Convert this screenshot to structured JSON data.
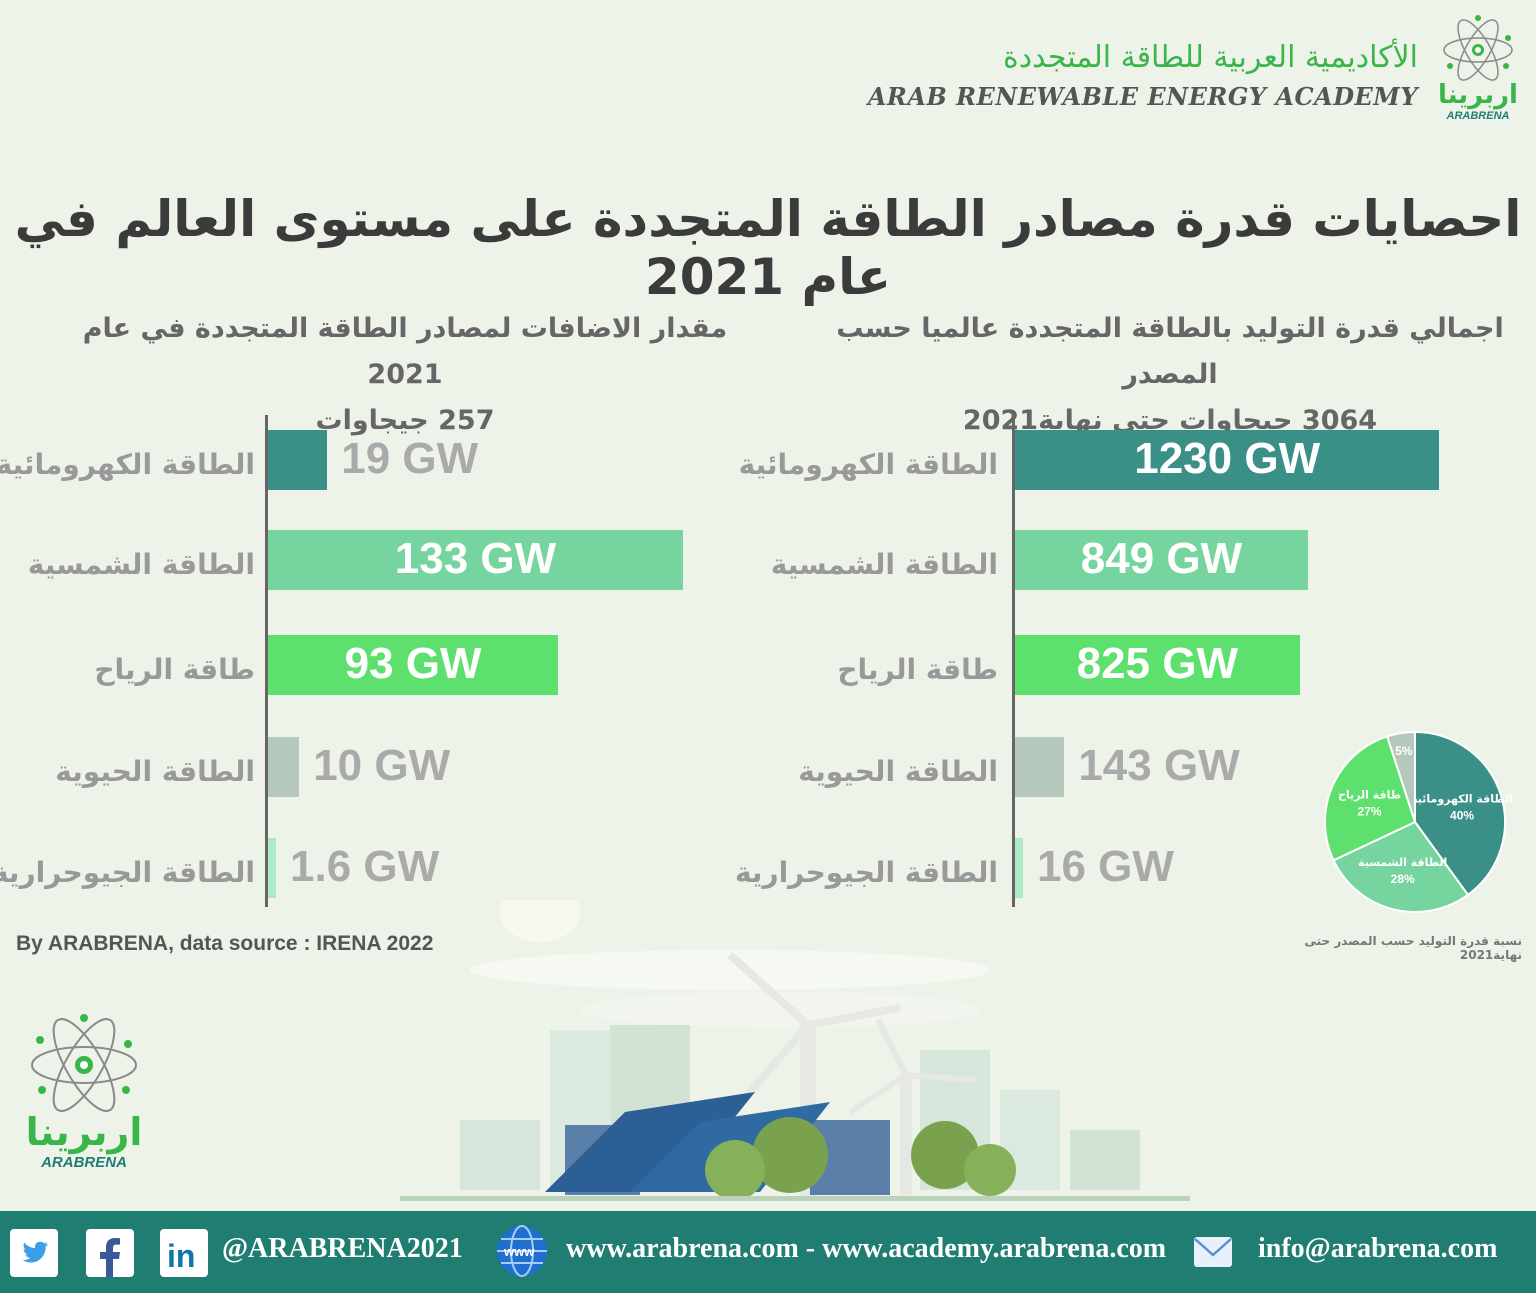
{
  "header": {
    "academy_ar": "الأكاديمية العربية للطاقة المتجددة",
    "academy_en": "ARAB RENEWABLE ENERGY ACADEMY",
    "logo_ar": "اربرينا",
    "logo_en": "ARABRENA"
  },
  "title": "احصايات قدرة مصادر الطاقة المتجددة على مستوى العالم في عام 2021",
  "colors": {
    "hydro": "#3a8f86",
    "solar": "#76d49e",
    "wind": "#5ee06e",
    "bio": "#b5c8bc",
    "geo": "#abebc8",
    "footer": "#1f7d72",
    "accent_green": "#39b54a"
  },
  "chart_data": [
    {
      "type": "bar",
      "orientation": "horizontal",
      "title_line1": "مقدار الاضافات لمصادر الطاقة المتجددة في عام 2021",
      "title_line2": "257 جيجاوات",
      "categories": [
        "الطاقة الكهرومائية",
        "الطاقة الشمسية",
        "طاقة الرياح",
        "الطاقة الحيوية",
        "الطاقة الجيوحرارية"
      ],
      "values": [
        19,
        133,
        93,
        10,
        1.6
      ],
      "value_labels": [
        "19 GW",
        "133 GW",
        "93 GW",
        "10 GW",
        "1.6 GW"
      ],
      "unit": "GW"
    },
    {
      "type": "bar",
      "orientation": "horizontal",
      "title_line1": "اجمالي قدرة التوليد بالطاقة المتجددة عالميا حسب المصدر",
      "title_line2": "3064 جيجاوات حتى نهاية2021",
      "categories": [
        "الطاقة الكهرومائية",
        "الطاقة الشمسية",
        "طاقة الرياح",
        "الطاقة الحيوية",
        "الطاقة الجيوحرارية"
      ],
      "values": [
        1230,
        849,
        825,
        143,
        16
      ],
      "value_labels": [
        "1230  GW",
        "849 GW",
        "825 GW",
        "143 GW",
        "16 GW"
      ],
      "unit": "GW"
    },
    {
      "type": "pie",
      "caption": "نسبة قدرة التوليد حسب المصدر حتى نهاية2021",
      "slices": [
        {
          "label": "الطاقة الكهرومائية",
          "value": 40,
          "pct": "40%"
        },
        {
          "label": "الطاقة الشمسية",
          "value": 28,
          "pct": "28%"
        },
        {
          "label": "طاقة الرياح",
          "value": 27,
          "pct": "27%"
        },
        {
          "label": "",
          "value": 5,
          "pct": "5%"
        }
      ]
    }
  ],
  "source": "By ARABRENA, data source : IRENA 2022",
  "footer": {
    "handle": "@ARABRENA2021",
    "websites": "www.arabrena.com - www.academy.arabrena.com",
    "email": "info@arabrena.com",
    "icons": [
      "twitter-icon",
      "facebook-icon",
      "linkedin-icon",
      "globe-icon",
      "mail-icon"
    ]
  }
}
